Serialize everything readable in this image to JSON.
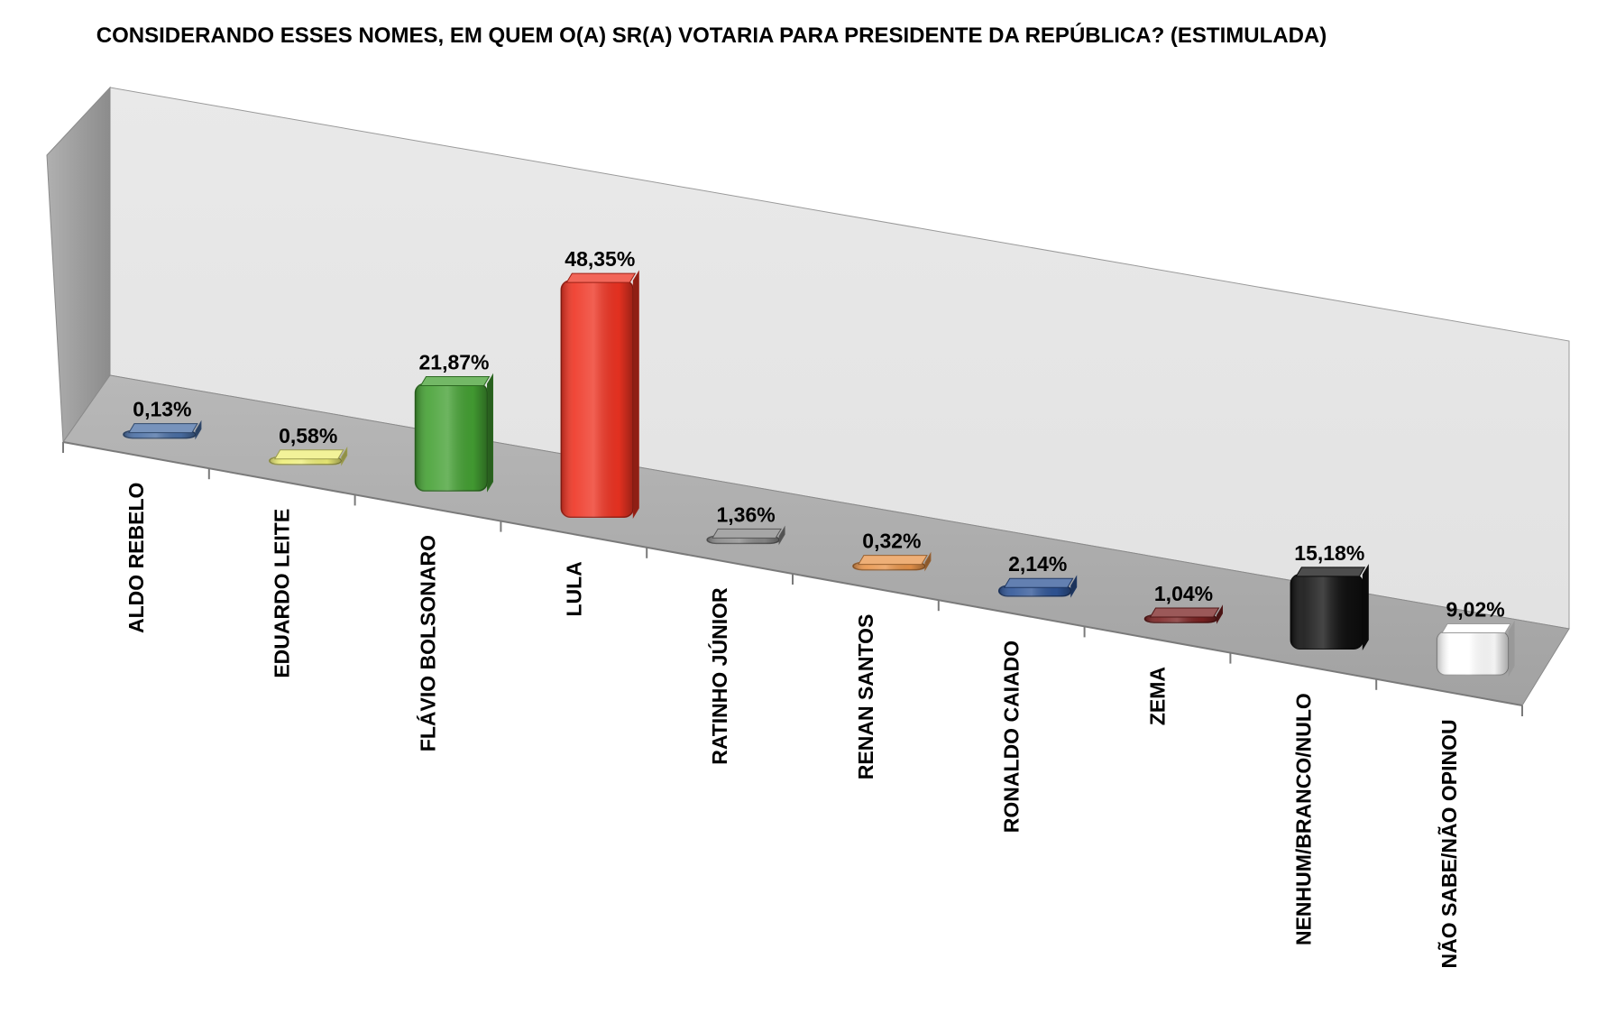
{
  "chart_data": {
    "type": "bar",
    "title": "CONSIDERANDO ESSES NOMES, EM QUEM O(A) SR(A) VOTARIA PARA PRESIDENTE DA REPÚBLICA? (ESTIMULADA)",
    "categories": [
      "ALDO REBELO",
      "EDUARDO LEITE",
      "FLÁVIO BOLSONARO",
      "LULA",
      "RATINHO JÚNIOR",
      "RENAN SANTOS",
      "RONALDO CAIADO",
      "ZEMA",
      "NENHUM/BRANCO/NULO",
      "NÃO SABE/NÃO OPINOU"
    ],
    "values": [
      0.13,
      0.58,
      21.87,
      48.35,
      1.36,
      0.32,
      2.14,
      1.04,
      15.18,
      9.02
    ],
    "value_labels": [
      "0,13%",
      "0,58%",
      "21,87%",
      "48,35%",
      "1,36%",
      "0,32%",
      "2,14%",
      "1,04%",
      "15,18%",
      "9,02%"
    ],
    "colors": [
      "#4a6fa5",
      "#eeee77",
      "#44a033",
      "#ee3322",
      "#888888",
      "#e8944a",
      "#2f5597",
      "#7a2222",
      "#111111",
      "#ffffff"
    ],
    "xlabel": "",
    "ylabel": "",
    "ylim": [
      0,
      50
    ],
    "grid": false,
    "legend": "none",
    "perspective": "3d"
  }
}
